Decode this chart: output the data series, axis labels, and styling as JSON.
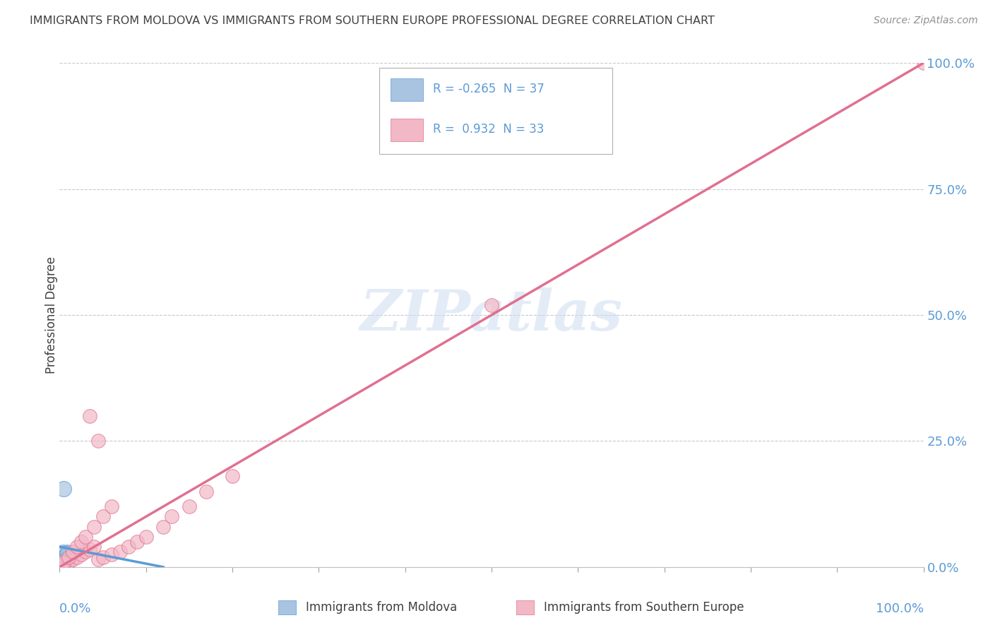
{
  "title": "IMMIGRANTS FROM MOLDOVA VS IMMIGRANTS FROM SOUTHERN EUROPE PROFESSIONAL DEGREE CORRELATION CHART",
  "source": "Source: ZipAtlas.com",
  "ylabel": "Professional Degree",
  "ylabel_ticks": [
    "0.0%",
    "25.0%",
    "50.0%",
    "75.0%",
    "100.0%"
  ],
  "ylabel_tick_vals": [
    0.0,
    0.25,
    0.5,
    0.75,
    1.0
  ],
  "xlim": [
    0.0,
    1.0
  ],
  "ylim": [
    0.0,
    1.0
  ],
  "series1_color": "#a8c4e0",
  "series1_edge": "#5b9bd5",
  "series1_line_color": "#5b9bd5",
  "series2_color": "#f2b8c6",
  "series2_edge": "#e07090",
  "series2_line_color": "#e07090",
  "watermark": "ZIPatlas",
  "background_color": "#ffffff",
  "grid_color": "#c8c8d4",
  "title_color": "#404040",
  "source_color": "#909090",
  "axis_label_color": "#5b9bd5",
  "legend_text_color": "#5b9bd5",
  "series1_x": [
    0.005,
    0.003,
    0.002,
    0.004,
    0.006,
    0.001,
    0.008,
    0.003,
    0.004,
    0.002,
    0.007,
    0.005,
    0.003,
    0.006,
    0.004,
    0.001,
    0.009,
    0.003,
    0.005,
    0.002,
    0.001,
    0.004,
    0.006,
    0.003,
    0.002,
    0.007,
    0.005,
    0.004,
    0.003,
    0.006,
    0.002,
    0.001,
    0.008,
    0.004,
    0.003,
    0.005,
    0.002
  ],
  "series1_y": [
    0.01,
    0.02,
    0.005,
    0.03,
    0.01,
    0.005,
    0.02,
    0.01,
    0.015,
    0.005,
    0.025,
    0.008,
    0.012,
    0.018,
    0.006,
    0.003,
    0.03,
    0.007,
    0.015,
    0.004,
    0.002,
    0.009,
    0.02,
    0.005,
    0.003,
    0.022,
    0.011,
    0.008,
    0.006,
    0.016,
    0.004,
    0.002,
    0.028,
    0.007,
    0.005,
    0.013,
    0.003
  ],
  "series1_outlier_x": [
    0.005
  ],
  "series1_outlier_y": [
    0.155
  ],
  "series2_x": [
    0.005,
    0.01,
    0.015,
    0.02,
    0.025,
    0.03,
    0.035,
    0.04,
    0.045,
    0.05,
    0.06,
    0.07,
    0.08,
    0.09,
    0.1,
    0.12,
    0.13,
    0.15,
    0.17,
    0.2,
    0.005,
    0.01,
    0.015,
    0.02,
    0.025,
    0.03,
    0.04,
    0.05,
    0.06,
    0.5,
    1.0,
    0.035,
    0.045
  ],
  "series2_y": [
    0.005,
    0.01,
    0.015,
    0.02,
    0.025,
    0.03,
    0.035,
    0.04,
    0.015,
    0.02,
    0.025,
    0.03,
    0.04,
    0.05,
    0.06,
    0.08,
    0.1,
    0.12,
    0.15,
    0.18,
    0.01,
    0.02,
    0.03,
    0.04,
    0.05,
    0.06,
    0.08,
    0.1,
    0.12,
    0.52,
    1.0,
    0.3,
    0.25
  ],
  "series2_line_x0": 0.0,
  "series2_line_y0": 0.0,
  "series2_line_x1": 1.0,
  "series2_line_y1": 1.0,
  "series1_line_x0": 0.0,
  "series1_line_y0": 0.04,
  "series1_line_x1": 0.12,
  "series1_line_y1": 0.0
}
